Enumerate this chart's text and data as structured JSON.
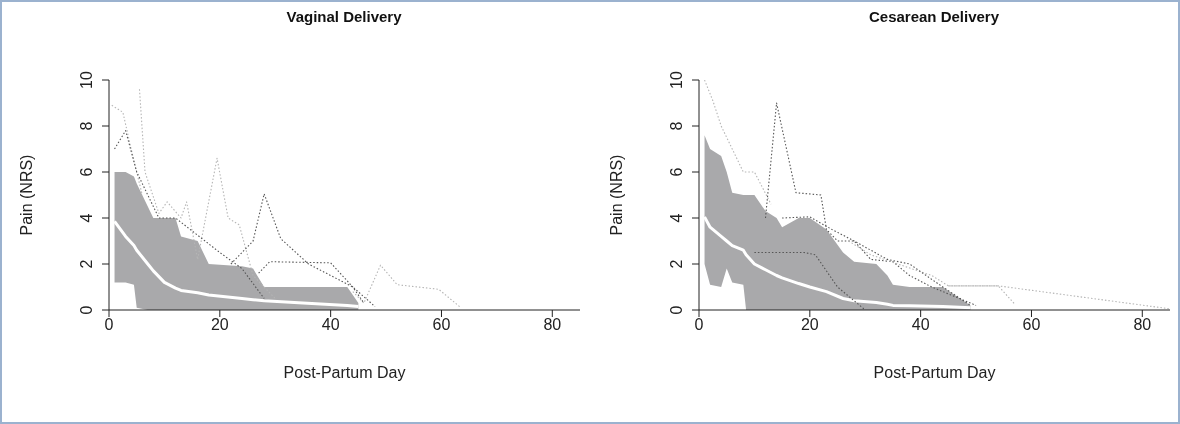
{
  "chart_data": [
    {
      "type": "line",
      "title": "Vaginal Delivery",
      "xlabel": "Post-Partum Day",
      "ylabel": "Pain (NRS)",
      "xlim": [
        0,
        85
      ],
      "ylim": [
        0,
        10
      ],
      "xticks": [
        0,
        20,
        40,
        60,
        80
      ],
      "yticks": [
        0,
        2,
        4,
        6,
        8,
        10
      ],
      "grid": false,
      "legend": false,
      "marker": "none",
      "series": [
        {
          "color": "#ffffff",
          "line_style": "solid",
          "x": [
            1,
            3,
            4.5,
            5,
            7,
            8,
            10,
            12,
            13,
            16,
            18,
            24,
            26,
            28,
            35,
            43,
            45
          ],
          "values": [
            3.85,
            3.2,
            2.8,
            2.6,
            2,
            1.7,
            1.2,
            0.95,
            0.85,
            0.75,
            0.65,
            0.5,
            0.45,
            0.4,
            0.3,
            0.2,
            0.15
          ],
          "lower": [
            1.2,
            1.2,
            1.1,
            0.1,
            0,
            0,
            0,
            0,
            0,
            0,
            0,
            0,
            0,
            0,
            0,
            0,
            0
          ],
          "upper": [
            6,
            6,
            5.8,
            5.5,
            4.5,
            4,
            4,
            4,
            3.2,
            3,
            2,
            1.9,
            1.8,
            1,
            1,
            1,
            0.3
          ]
        },
        {
          "color": "#b5b5b5",
          "line_style": "dotted",
          "x": [
            44,
            46,
            49,
            52,
            59.5,
            63.5
          ],
          "values": [
            0.8,
            0.3,
            1.95,
            1.1,
            0.9,
            0.1
          ]
        },
        {
          "color": "#b5b5b5",
          "line_style": "dotted",
          "x": [
            5.5,
            6.5,
            9,
            10.5,
            13,
            14,
            16,
            19.5,
            21.5,
            23.5,
            26,
            30
          ],
          "values": [
            9.6,
            6,
            4.2,
            4.7,
            4,
            4.7,
            2.2,
            6.6,
            4,
            3.7,
            1.5,
            0.5
          ]
        },
        {
          "color": "#b5b5b5",
          "line_style": "dotted",
          "x": [
            0.5,
            2.5,
            4,
            6
          ],
          "values": [
            8.9,
            8.6,
            7,
            5
          ]
        },
        {
          "color": "#555555",
          "line_style": "dotted",
          "x": [
            22,
            26,
            28,
            31,
            36,
            44,
            48
          ],
          "values": [
            2,
            3,
            5.05,
            3.1,
            2,
            1,
            0.15
          ]
        },
        {
          "color": "#555555",
          "line_style": "dotted",
          "x": [
            27,
            29,
            40,
            44,
            46
          ],
          "values": [
            1.6,
            2.1,
            2.05,
            1,
            0.3
          ]
        },
        {
          "color": "#555555",
          "line_style": "dotted",
          "x": [
            1,
            3,
            5,
            9,
            12,
            20,
            24,
            28
          ],
          "values": [
            7,
            7.8,
            6,
            4,
            4,
            2.5,
            1.8,
            0.5
          ]
        }
      ]
    },
    {
      "type": "line",
      "title": "Cesarean Delivery",
      "xlabel": "Post-Partum Day",
      "ylabel": "Pain (NRS)",
      "xlim": [
        0,
        85
      ],
      "ylim": [
        0,
        10
      ],
      "xticks": [
        0,
        20,
        40,
        60,
        80
      ],
      "yticks": [
        0,
        2,
        4,
        6,
        8,
        10
      ],
      "grid": false,
      "legend": false,
      "marker": "none",
      "series": [
        {
          "color": "#ffffff",
          "line_style": "solid",
          "x": [
            1,
            2,
            4,
            5,
            6,
            8,
            8.5,
            10,
            12,
            14,
            15,
            18,
            20,
            23,
            26,
            28,
            32,
            34,
            35,
            38,
            44,
            49
          ],
          "values": [
            4.05,
            3.6,
            3.2,
            3,
            2.8,
            2.6,
            2.4,
            2,
            1.75,
            1.5,
            1.4,
            1.15,
            1,
            0.8,
            0.5,
            0.4,
            0.33,
            0.25,
            0.2,
            0.18,
            0.15,
            0.1
          ],
          "lower": [
            2,
            1.1,
            1,
            1.8,
            1.2,
            1.1,
            0,
            0,
            0,
            0,
            0,
            0,
            0,
            0,
            0,
            0,
            0,
            0,
            0,
            0,
            0,
            0
          ],
          "upper": [
            7.6,
            7,
            6.7,
            6,
            5.1,
            5,
            5,
            5,
            4.3,
            4,
            3.6,
            4,
            4,
            3.5,
            2.5,
            2.1,
            2,
            1.5,
            1.1,
            1,
            1,
            0.2
          ]
        },
        {
          "color": "#555555",
          "line_style": "dotted",
          "x": [
            12,
            14,
            17.5,
            22,
            23,
            25,
            28,
            31,
            35,
            38,
            42,
            50
          ],
          "values": [
            4,
            9,
            5.1,
            5,
            3.5,
            3,
            3,
            2.2,
            2.1,
            1.5,
            1,
            0.2
          ]
        },
        {
          "color": "#b5b5b5",
          "line_style": "dotted",
          "x": [
            27,
            31,
            42,
            45,
            54,
            57
          ],
          "values": [
            3,
            2.4,
            1.5,
            1.05,
            1.05,
            0.25
          ]
        },
        {
          "color": "#b5b5b5",
          "line_style": "dotted",
          "x": [
            45,
            54,
            85
          ],
          "values": [
            1.05,
            1.05,
            0.05
          ]
        },
        {
          "color": "#b5b5b5",
          "line_style": "dotted",
          "x": [
            1,
            2.5,
            4,
            8,
            10,
            13
          ],
          "values": [
            10,
            9.1,
            8,
            6,
            6,
            4.6
          ]
        },
        {
          "color": "#555555",
          "line_style": "dotted",
          "x": [
            15,
            20,
            24,
            28,
            34,
            38,
            44,
            49
          ],
          "values": [
            4,
            4.05,
            3.5,
            3,
            2.2,
            2,
            1,
            0.2
          ]
        },
        {
          "color": "#555555",
          "line_style": "dotted",
          "x": [
            10,
            19,
            21,
            25,
            30
          ],
          "values": [
            2.5,
            2.5,
            2.4,
            1,
            0
          ]
        }
      ]
    }
  ]
}
